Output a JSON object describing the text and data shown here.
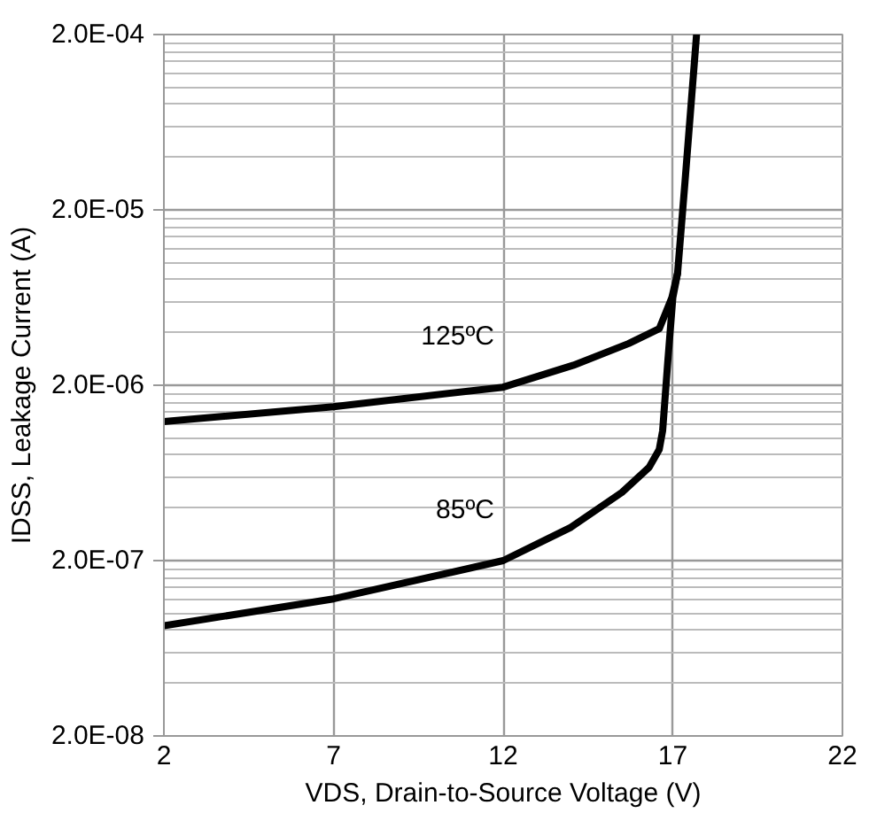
{
  "chart_data": {
    "type": "line",
    "xlabel": "VDS, Drain-to-Source Voltage (V)",
    "ylabel": "IDSS, Leakage Current (A)",
    "log": "y",
    "xlim": [
      2,
      22
    ],
    "xticks": [
      2,
      7,
      12,
      17,
      22
    ],
    "ylim": [
      2e-08,
      0.0002
    ],
    "yticks": [
      {
        "value": 2e-08,
        "label": "2.0E-08"
      },
      {
        "value": 4e-08,
        "label": null
      },
      {
        "value": 6e-08,
        "label": null
      },
      {
        "value": 8e-08,
        "label": null
      },
      {
        "value": 1e-07,
        "label": null
      },
      {
        "value": 1.2e-07,
        "label": null
      },
      {
        "value": 1.4e-07,
        "label": null
      },
      {
        "value": 1.6e-07,
        "label": null
      },
      {
        "value": 1.8e-07,
        "label": null
      },
      {
        "value": 2e-07,
        "label": "2.0E-07"
      },
      {
        "value": 4e-07,
        "label": null
      },
      {
        "value": 6e-07,
        "label": null
      },
      {
        "value": 8e-07,
        "label": null
      },
      {
        "value": 1e-06,
        "label": null
      },
      {
        "value": 1.2e-06,
        "label": null
      },
      {
        "value": 1.4e-06,
        "label": null
      },
      {
        "value": 1.6e-06,
        "label": null
      },
      {
        "value": 1.8e-06,
        "label": null
      },
      {
        "value": 2e-06,
        "label": "2.0E-06"
      },
      {
        "value": 4e-06,
        "label": null
      },
      {
        "value": 6e-06,
        "label": null
      },
      {
        "value": 8e-06,
        "label": null
      },
      {
        "value": 1e-05,
        "label": null
      },
      {
        "value": 1.2e-05,
        "label": null
      },
      {
        "value": 1.4e-05,
        "label": null
      },
      {
        "value": 1.6e-05,
        "label": null
      },
      {
        "value": 1.8e-05,
        "label": null
      },
      {
        "value": 2e-05,
        "label": "2.0E-05"
      },
      {
        "value": 4e-05,
        "label": null
      },
      {
        "value": 6e-05,
        "label": null
      },
      {
        "value": 8e-05,
        "label": null
      },
      {
        "value": 0.0001,
        "label": null
      },
      {
        "value": 0.00012,
        "label": null
      },
      {
        "value": 0.00014,
        "label": null
      },
      {
        "value": 0.00016,
        "label": null
      },
      {
        "value": 0.00018,
        "label": null
      },
      {
        "value": 0.0002,
        "label": "2.0E-04"
      }
    ],
    "grid": true,
    "marker": "none",
    "line_style": "solid",
    "series": [
      {
        "name": "125ºC",
        "color": "#000000",
        "x": [
          2,
          7,
          12,
          14.07,
          15.7,
          16.6,
          16.97,
          17.14,
          17.36,
          17.7
        ],
        "values": [
          1.24e-06,
          1.51e-06,
          1.95e-06,
          2.6e-06,
          3.46e-06,
          4.2e-06,
          6.3e-06,
          8.7e-06,
          2.9e-05,
          0.0002
        ]
      },
      {
        "name": "85ºC",
        "color": "#000000",
        "x": [
          2,
          7,
          12,
          14,
          15.5,
          16.3,
          16.6,
          16.7,
          16.85,
          17.0,
          17.14
        ],
        "values": [
          8.5e-08,
          1.21e-07,
          2e-07,
          3.1e-07,
          4.9e-07,
          6.8e-07,
          8.6e-07,
          1.1e-06,
          2.7e-06,
          6.3e-06,
          8.7e-06
        ]
      }
    ]
  }
}
